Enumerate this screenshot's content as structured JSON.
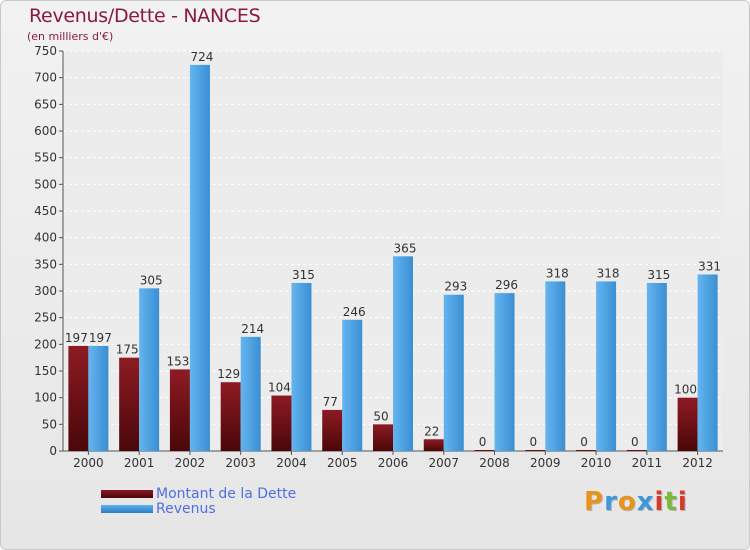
{
  "chart_data": {
    "type": "bar",
    "title": "Revenus/Dette - NANCES",
    "subtitle": "(en milliers d'€)",
    "categories": [
      "2000",
      "2001",
      "2002",
      "2003",
      "2004",
      "2005",
      "2006",
      "2007",
      "2008",
      "2009",
      "2010",
      "2011",
      "2012"
    ],
    "series": [
      {
        "name": "Montant de la Dette",
        "values": [
          197,
          175,
          153,
          129,
          104,
          77,
          50,
          22,
          0,
          0,
          0,
          0,
          100
        ],
        "color": "#6b0d14"
      },
      {
        "name": "Revenus",
        "values": [
          197,
          305,
          724,
          214,
          315,
          246,
          365,
          293,
          296,
          318,
          318,
          315,
          331
        ],
        "color": "#3f97d9"
      }
    ],
    "ylim": [
      0,
      750
    ],
    "yticks": [
      0,
      50,
      100,
      150,
      200,
      250,
      300,
      350,
      400,
      450,
      500,
      550,
      600,
      650,
      700,
      750
    ],
    "grid": true,
    "legend": "bottom-left"
  },
  "logo": {
    "letters": [
      "P",
      "r",
      "o",
      "x",
      "i",
      "t",
      "i"
    ],
    "colors": [
      "#e8931c",
      "#3f97d9",
      "#e8931c",
      "#3f97d9",
      "#d63a2b",
      "#7cb83a",
      "#d63a2b"
    ]
  }
}
